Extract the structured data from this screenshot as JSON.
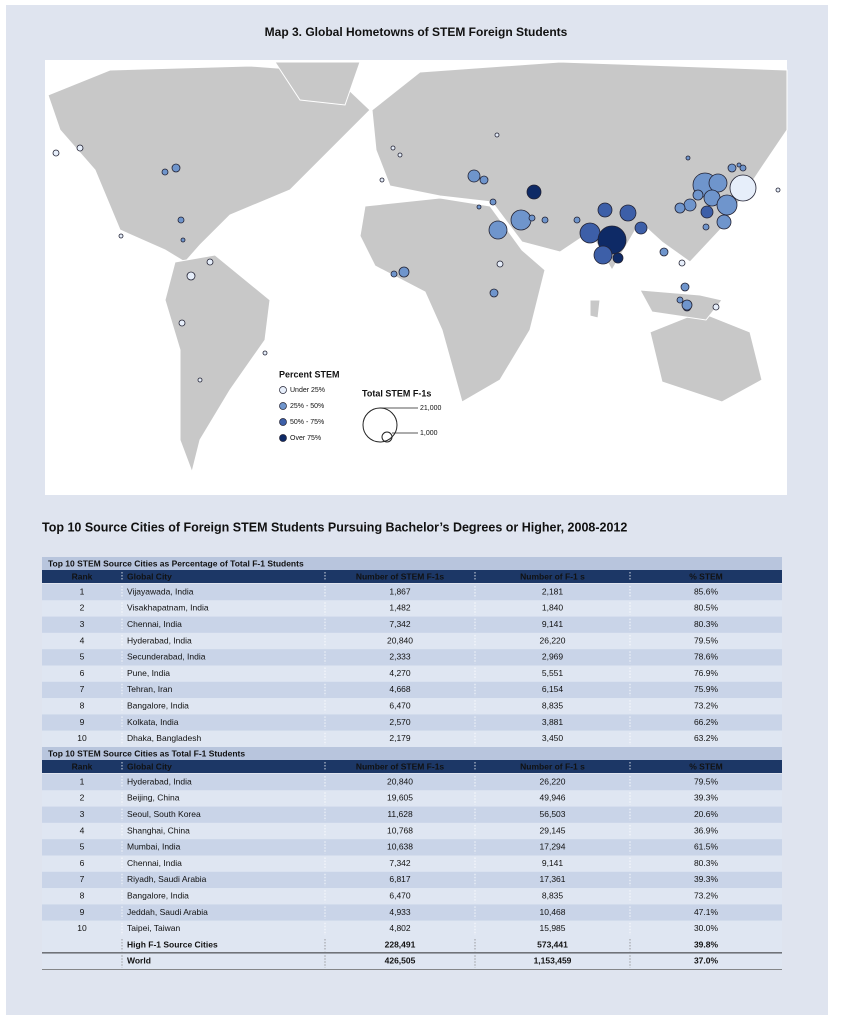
{
  "map": {
    "title": "Map 3. Global Hometowns of STEM Foreign Students",
    "legend": {
      "color_title": "Percent STEM",
      "color_items": [
        "Under 25%",
        "25% - 50%",
        "50% - 75%",
        "Over 75%"
      ],
      "size_title": "Total STEM F-1s",
      "size_items": [
        "21,000",
        "1,000"
      ]
    }
  },
  "tables": {
    "title": "Top 10 Source Cities of Foreign STEM Students Pursuing Bachelor’s Degrees or Higher, 2008-2012",
    "sections": [
      {
        "title": "Top 10 STEM Source Cities as Percentage of Total F-1 Students",
        "header": [
          "Rank",
          "Global City",
          "Number of STEM F-1s",
          "Number of F-1 s",
          "% STEM"
        ],
        "rows": [
          [
            "1",
            "Vijayawada, India",
            "1,867",
            "2,181",
            "85.6%"
          ],
          [
            "2",
            "Visakhapatnam, India",
            "1,482",
            "1,840",
            "80.5%"
          ],
          [
            "3",
            "Chennai, India",
            "7,342",
            "9,141",
            "80.3%"
          ],
          [
            "4",
            "Hyderabad, India",
            "20,840",
            "26,220",
            "79.5%"
          ],
          [
            "5",
            "Secunderabad, India",
            "2,333",
            "2,969",
            "78.6%"
          ],
          [
            "6",
            "Pune, India",
            "4,270",
            "5,551",
            "76.9%"
          ],
          [
            "7",
            "Tehran, Iran",
            "4,668",
            "6,154",
            "75.9%"
          ],
          [
            "8",
            "Bangalore, India",
            "6,470",
            "8,835",
            "73.2%"
          ],
          [
            "9",
            "Kolkata, India",
            "2,570",
            "3,881",
            "66.2%"
          ],
          [
            "10",
            "Dhaka, Bangladesh",
            "2,179",
            "3,450",
            "63.2%"
          ]
        ]
      },
      {
        "title": "Top 10 STEM Source Cities as Total F-1 Students",
        "header": [
          "Rank",
          "Global City",
          "Number of STEM F-1s",
          "Number of F-1 s",
          "% STEM"
        ],
        "rows": [
          [
            "1",
            "Hyderabad, India",
            "20,840",
            "26,220",
            "79.5%"
          ],
          [
            "2",
            "Beijing, China",
            "19,605",
            "49,946",
            "39.3%"
          ],
          [
            "3",
            "Seoul, South Korea",
            "11,628",
            "56,503",
            "20.6%"
          ],
          [
            "4",
            "Shanghai, China",
            "10,768",
            "29,145",
            "36.9%"
          ],
          [
            "5",
            "Mumbai, India",
            "10,638",
            "17,294",
            "61.5%"
          ],
          [
            "6",
            "Chennai, India",
            "7,342",
            "9,141",
            "80.3%"
          ],
          [
            "7",
            "Riyadh, Saudi Arabia",
            "6,817",
            "17,361",
            "39.3%"
          ],
          [
            "8",
            "Bangalore, India",
            "6,470",
            "8,835",
            "73.2%"
          ],
          [
            "9",
            "Jeddah, Saudi Arabia",
            "4,933",
            "10,468",
            "47.1%"
          ],
          [
            "10",
            "Taipei, Taiwan",
            "4,802",
            "15,985",
            "30.0%"
          ]
        ]
      }
    ],
    "totals": [
      {
        "label": "High F-1 Source Cities",
        "values": [
          "228,491",
          "573,441",
          "39.8%"
        ]
      },
      {
        "label": "World",
        "values": [
          "426,505",
          "1,153,459",
          "37.0%"
        ]
      }
    ]
  }
}
